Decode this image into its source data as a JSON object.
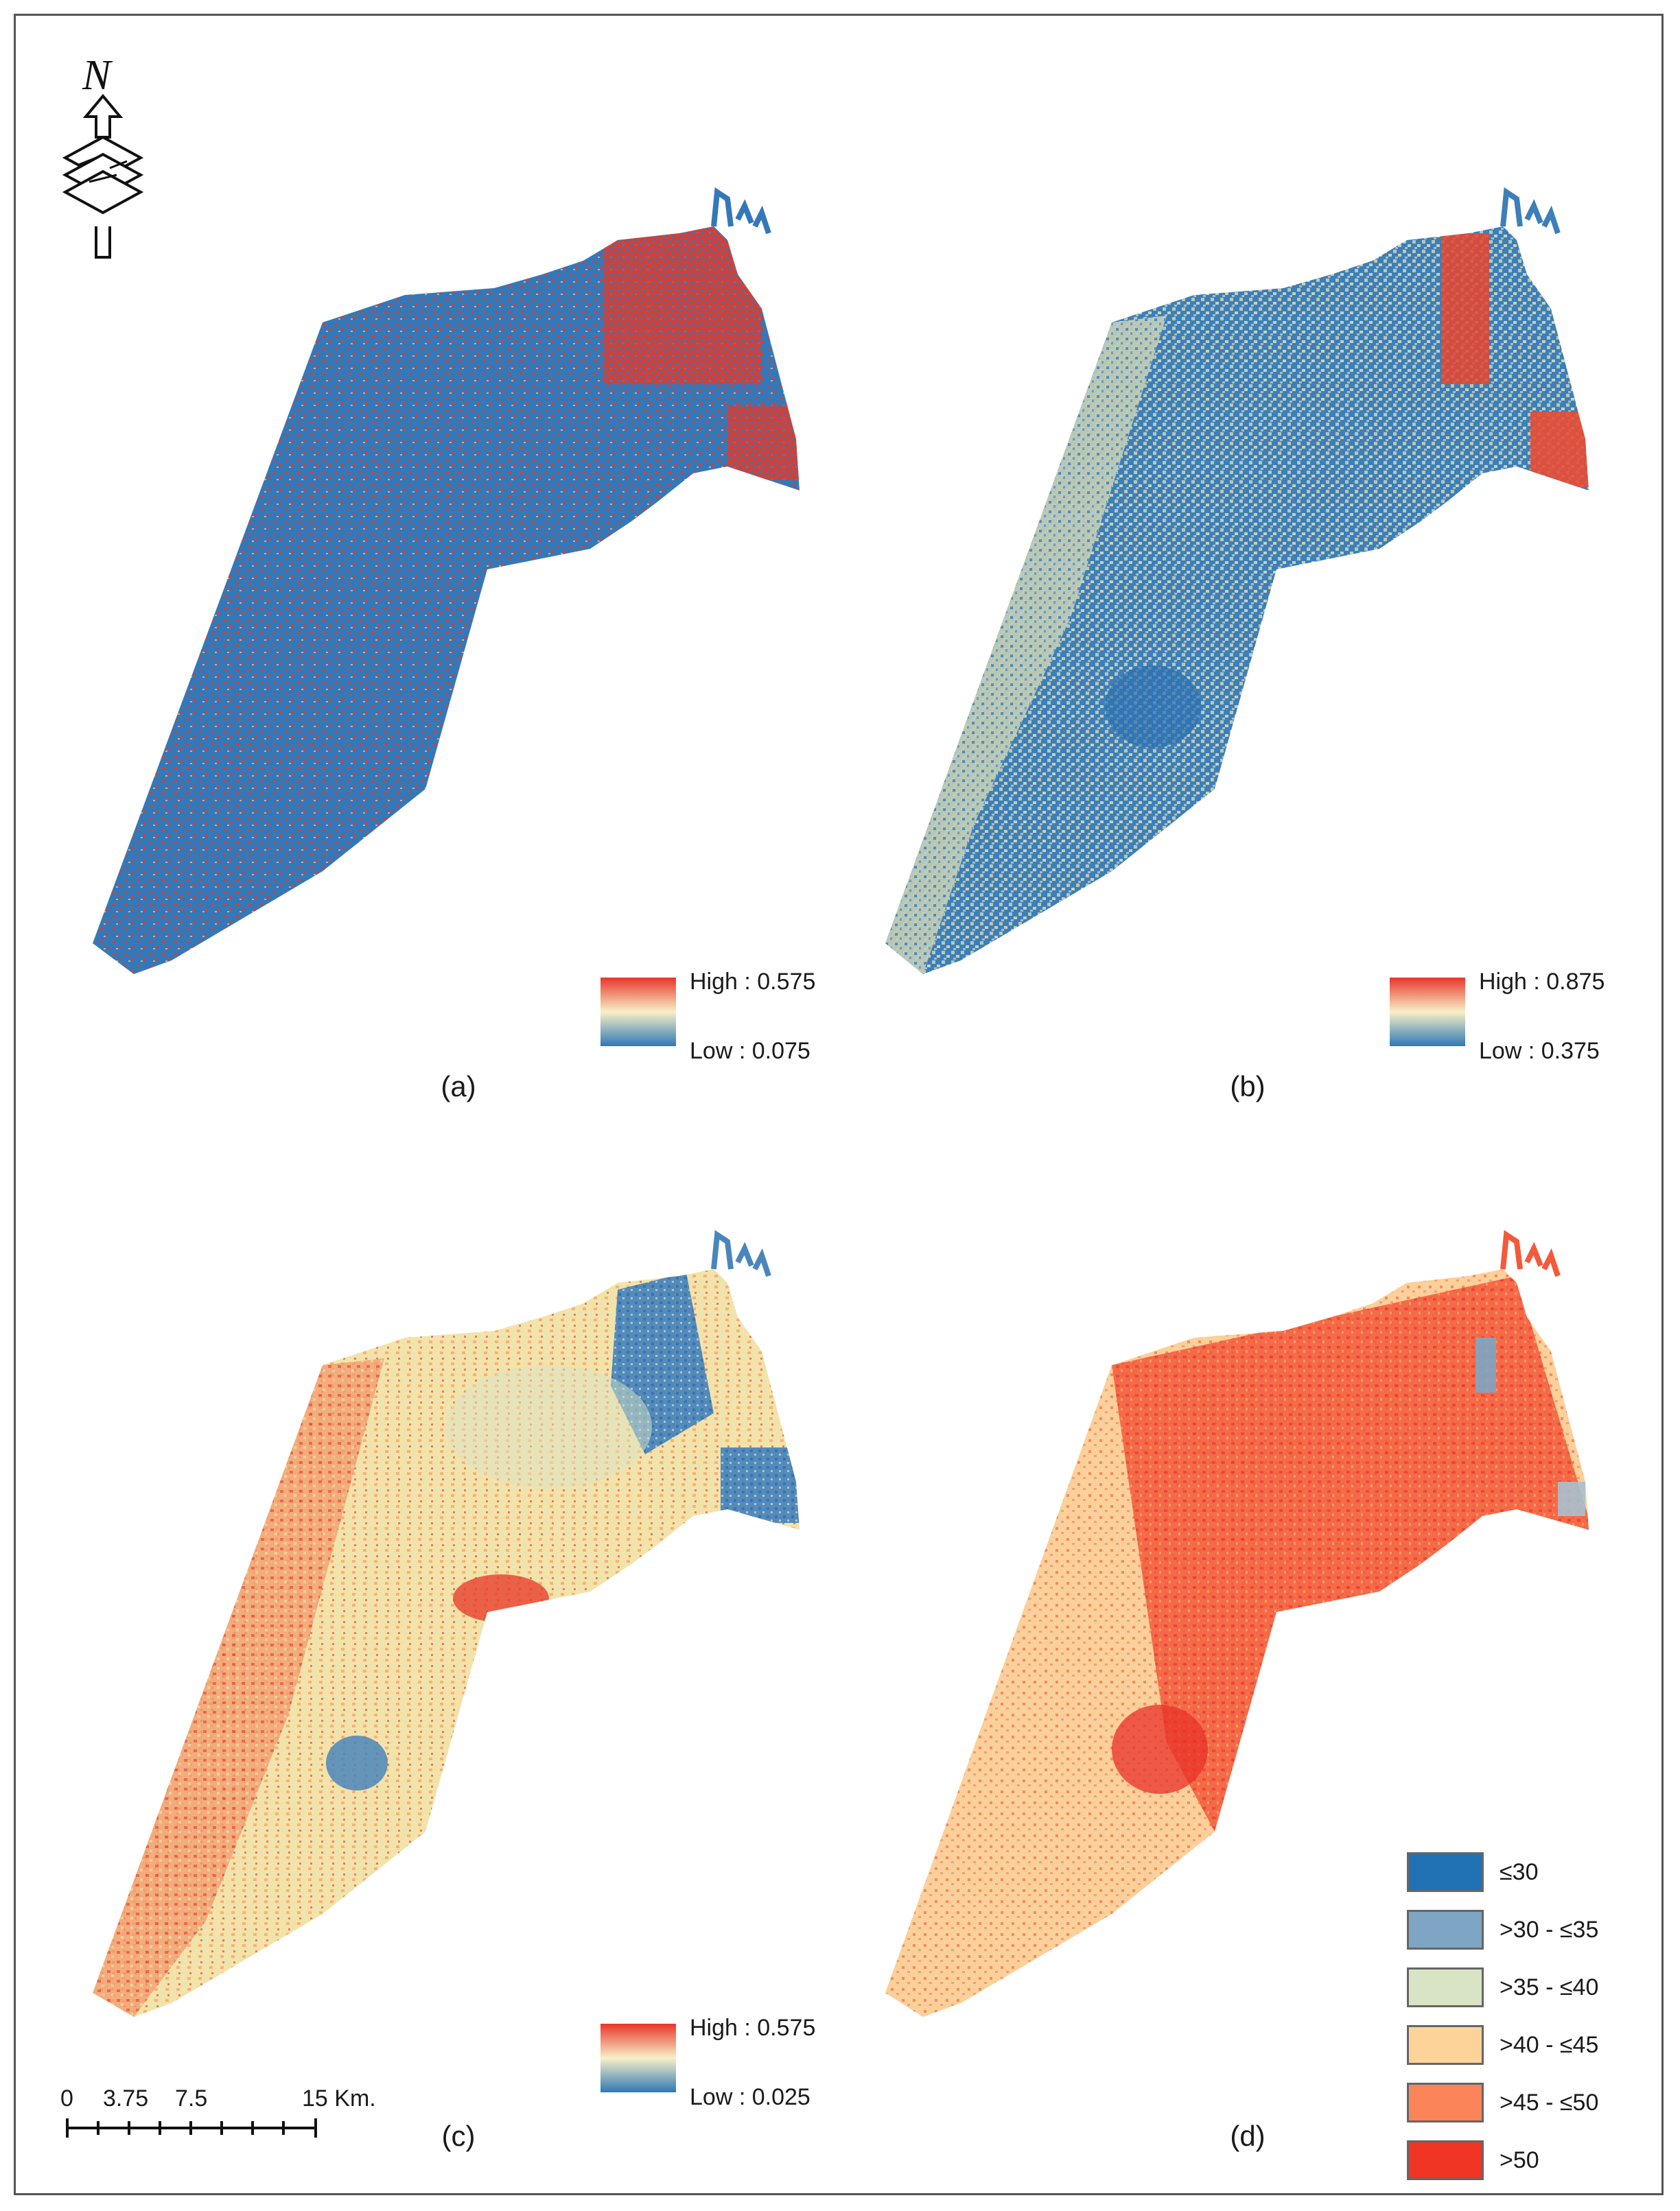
{
  "figure": {
    "panels": [
      {
        "id": "a",
        "label": "(a)",
        "legend": {
          "high": "High : 0.575",
          "low": "Low : 0.075"
        }
      },
      {
        "id": "b",
        "label": "(b)",
        "legend": {
          "high": "High : 0.875",
          "low": "Low : 0.375"
        }
      },
      {
        "id": "c",
        "label": "(c)",
        "legend": {
          "high": "High : 0.575",
          "low": "Low : 0.025"
        }
      },
      {
        "id": "d",
        "label": "(d)"
      }
    ],
    "class_legend": [
      {
        "label": "≤30",
        "color": "#2171b5"
      },
      {
        "label": ">30 - ≤35",
        "color": "#7ea6c4"
      },
      {
        "label": ">35 - ≤40",
        "color": "#d9e4c4"
      },
      {
        "label": ">40 - ≤45",
        "color": "#fdd39a"
      },
      {
        "label": ">45 - ≤50",
        "color": "#fc8459"
      },
      {
        "label": ">50",
        "color": "#f03524"
      }
    ],
    "scale_bar": {
      "ticks": [
        "0",
        "3.75",
        "7.5",
        "15 Km."
      ]
    },
    "north_arrow": {
      "letter": "N",
      "icon": "north-arrow-icon"
    },
    "gradient_colors": {
      "high": "#e8352a",
      "mid": "#f8f0c8",
      "low": "#2f78b6"
    }
  }
}
